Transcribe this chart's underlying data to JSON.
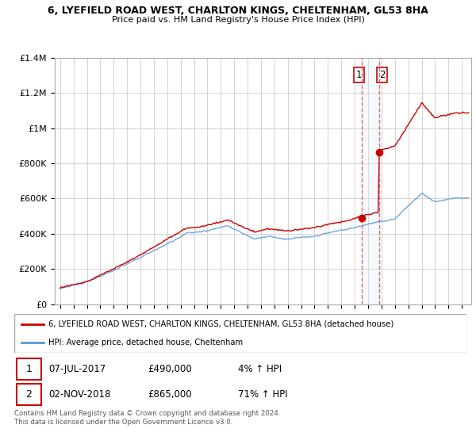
{
  "title1": "6, LYEFIELD ROAD WEST, CHARLTON KINGS, CHELTENHAM, GL53 8HA",
  "title2": "Price paid vs. HM Land Registry's House Price Index (HPI)",
  "legend_label1": "6, LYEFIELD ROAD WEST, CHARLTON KINGS, CHELTENHAM, GL53 8HA (detached house)",
  "legend_label2": "HPI: Average price, detached house, Cheltenham",
  "transaction1_date": "07-JUL-2017",
  "transaction1_price": 490000,
  "transaction1_hpi": "4% ↑ HPI",
  "transaction2_date": "02-NOV-2018",
  "transaction2_price": 865000,
  "transaction2_hpi": "71% ↑ HPI",
  "footer": "Contains HM Land Registry data © Crown copyright and database right 2024.\nThis data is licensed under the Open Government Licence v3.0.",
  "hpi_color": "#5599dd",
  "price_color": "#cc0000",
  "vline_color": "#dd4444",
  "shade_color": "#ddeeff",
  "ylim_max": 1400000,
  "ylim_min": 0,
  "t1_year": 2017.52,
  "t2_year": 2018.83
}
